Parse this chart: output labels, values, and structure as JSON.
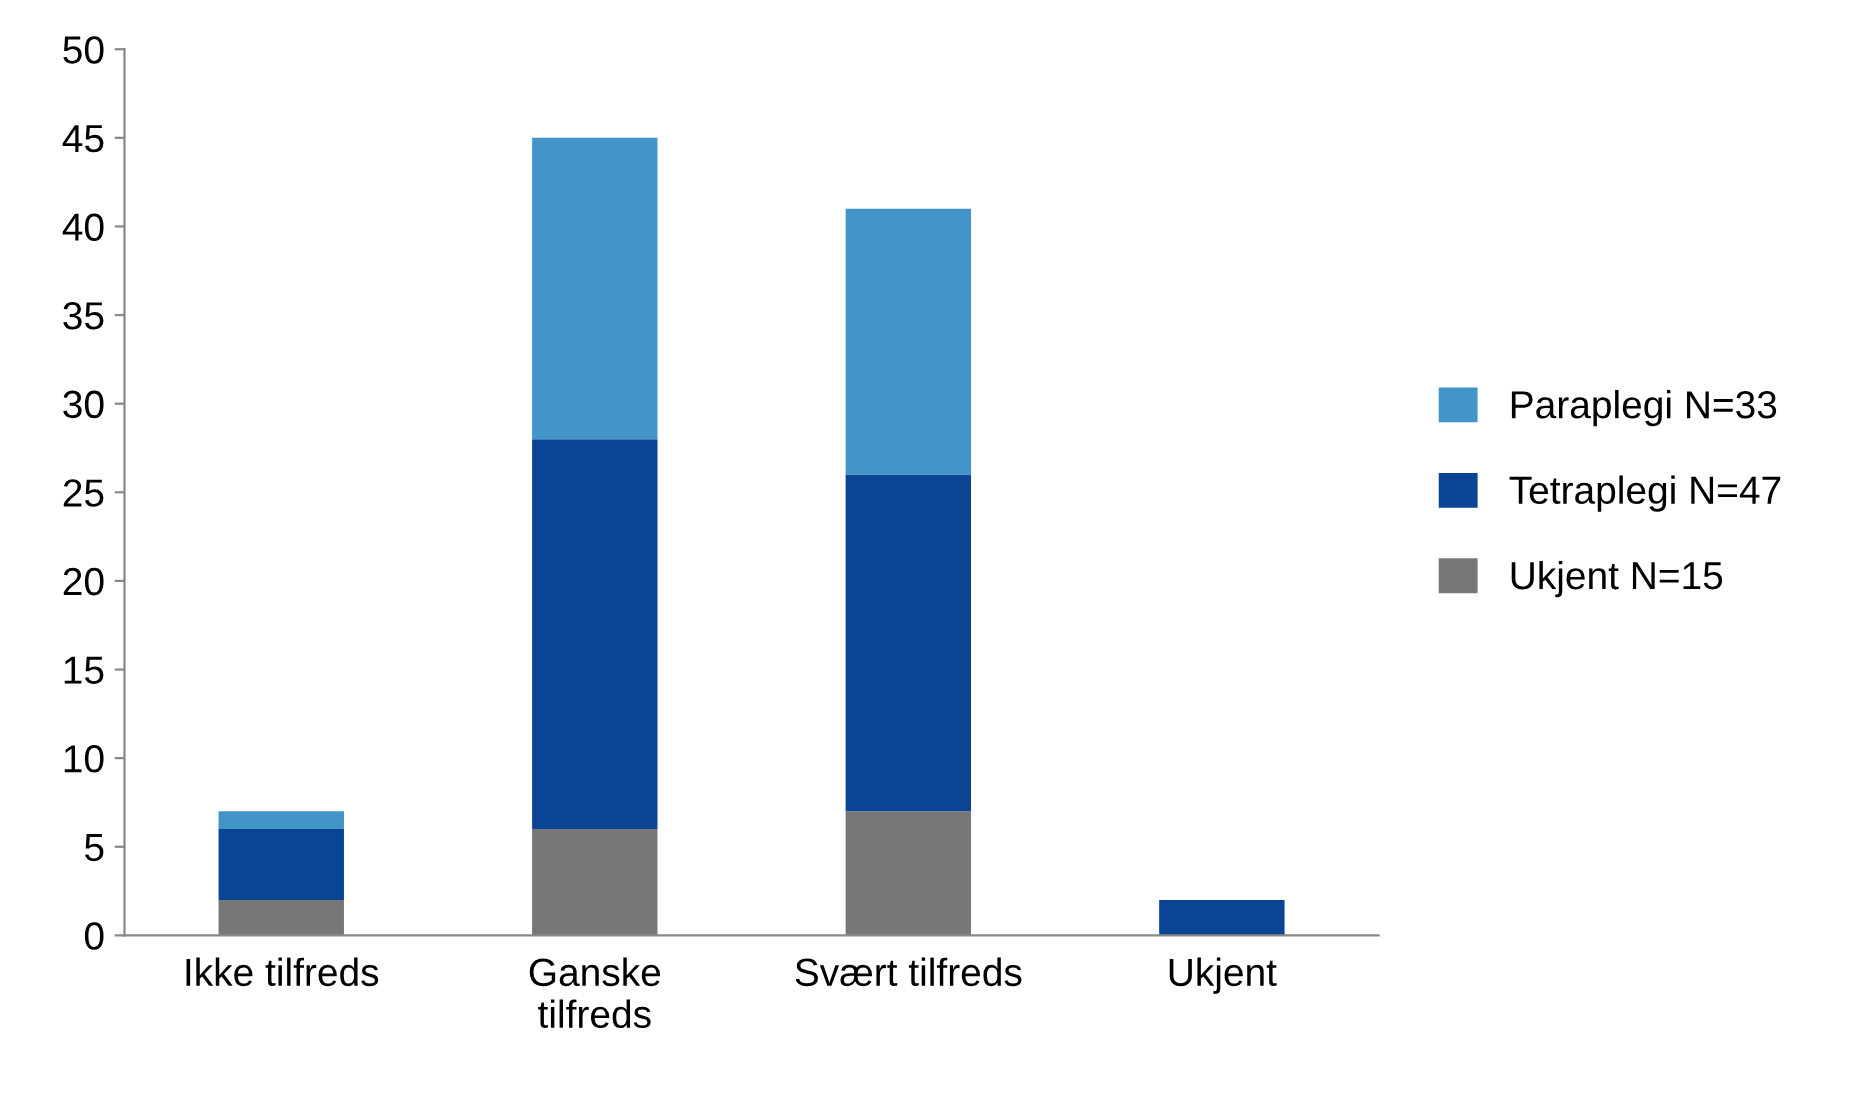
{
  "chart_data": {
    "type": "bar",
    "stacked": true,
    "categories": [
      "Ikke tilfreds",
      "Ganske\ntilfreds",
      "Svært tilfreds",
      "Ukjent"
    ],
    "series": [
      {
        "name": "Ukjent N=15",
        "color": "#777777",
        "values": [
          2,
          6,
          7,
          0
        ]
      },
      {
        "name": "Tetraplegi N=47",
        "color": "#0a4595",
        "values": [
          4,
          22,
          19,
          2
        ]
      },
      {
        "name": "Paraplegi N=33",
        "color": "#4294c9",
        "values": [
          1,
          17,
          15,
          0
        ]
      }
    ],
    "ylim": [
      0,
      50
    ],
    "yticks": [
      0,
      5,
      10,
      15,
      20,
      25,
      30,
      35,
      40,
      45,
      50
    ],
    "grid": false,
    "legend": "right"
  }
}
